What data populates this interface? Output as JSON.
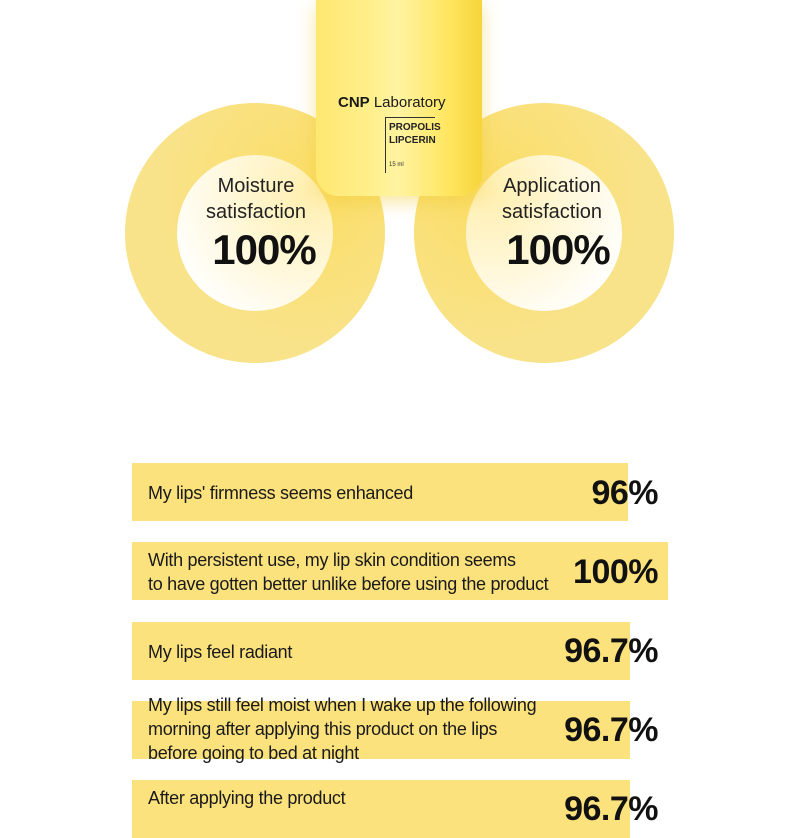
{
  "product": {
    "brand_bold": "CNP",
    "brand_rest": "Laboratory",
    "name_line1": "PROPOLIS",
    "name_line2": "LIPCERIN",
    "volume": "15 ml"
  },
  "stats": [
    {
      "label_line1": "Moisture",
      "label_line2": "satisfaction",
      "value": "100%"
    },
    {
      "label_line1": "Application",
      "label_line2": "satisfaction",
      "value": "100%"
    }
  ],
  "rows": [
    {
      "text": [
        "My lips' firmness seems enhanced"
      ],
      "value": "96%"
    },
    {
      "text": [
        "With persistent use, my lip skin condition seems",
        "to have gotten better unlike before using the product"
      ],
      "value": "100%"
    },
    {
      "text": [
        "My lips feel radiant"
      ],
      "value": "96.7%"
    },
    {
      "text": [
        "My lips still feel moist when I wake up the following",
        "morning after applying this product on the lips",
        "before going to bed at night"
      ],
      "value": "96.7%"
    },
    {
      "text": [
        "After applying the product"
      ],
      "value": "96.7%"
    }
  ],
  "colors": {
    "accent": "#fbe27c",
    "ring": "#f9e38a",
    "tube": "#ffe870"
  }
}
